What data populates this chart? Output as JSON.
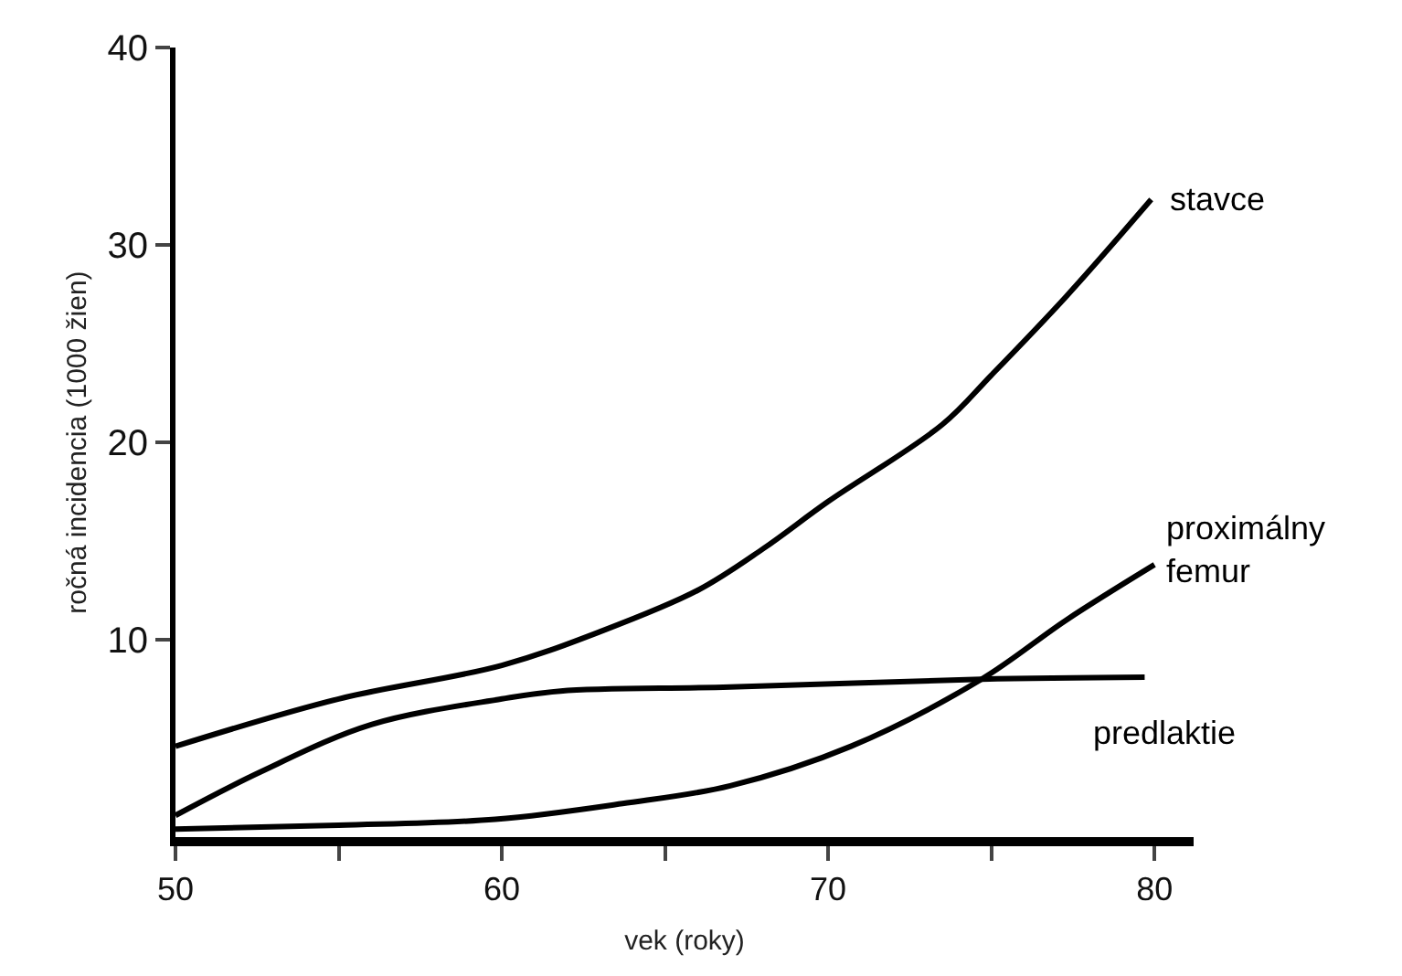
{
  "chart_data": {
    "type": "line",
    "xlabel": "vek (roky)",
    "ylabel": "ročná incidencia (1000 žien)",
    "xlim": [
      50,
      81.2
    ],
    "ylim": [
      0,
      40
    ],
    "xticks": [
      50,
      {
        "value": 55,
        "label": null
      },
      60,
      {
        "value": 65,
        "label": null
      },
      70,
      {
        "value": 75,
        "label": null
      },
      80
    ],
    "yticks": [
      10,
      20,
      30,
      40
    ],
    "legend": false,
    "marker": "none",
    "line_style": "solid",
    "series": [
      {
        "name": "stavce",
        "color": "#000000",
        "x": [
          50,
          55,
          60,
          63,
          66,
          68,
          70,
          73.5,
          75,
          77.3,
          79.9
        ],
        "values": [
          4.6,
          7.0,
          8.7,
          10.4,
          12.5,
          14.6,
          17.0,
          20.9,
          23.4,
          27.4,
          32.3
        ]
      },
      {
        "name": "proximálny\nfemur",
        "color": "#000000",
        "x": [
          50,
          55,
          59.8,
          63.7,
          67,
          70.7,
          74.7,
          77.3,
          80
        ],
        "values": [
          0.4,
          0.6,
          0.9,
          1.7,
          2.6,
          4.6,
          8.0,
          11.0,
          13.8
        ]
      },
      {
        "name": "predlaktie",
        "color": "#000000",
        "x": [
          50,
          52.6,
          56,
          60,
          61.8,
          67,
          74.7,
          79.7
        ],
        "values": [
          1.1,
          3.3,
          5.7,
          7.0,
          7.4,
          7.6,
          8.0,
          8.1
        ]
      }
    ]
  }
}
